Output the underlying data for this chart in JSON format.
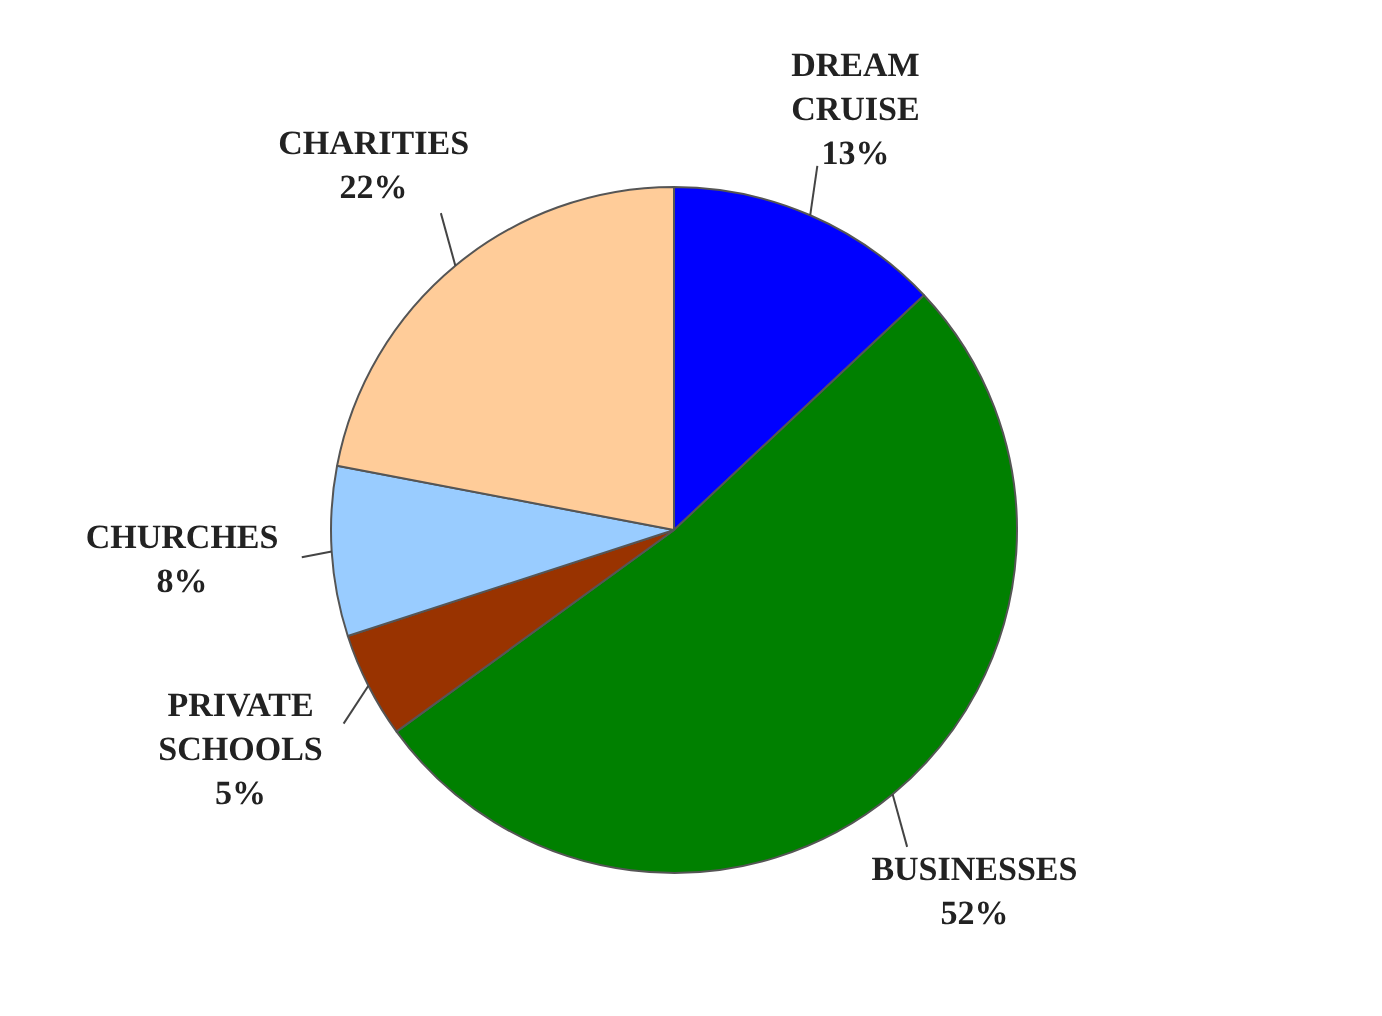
{
  "chart_data": {
    "type": "pie",
    "categories": [
      "DREAM CRUISE",
      "BUSINESSES",
      "PRIVATE SCHOOLS",
      "CHURCHES",
      "CHARITIES"
    ],
    "values": [
      13,
      52,
      5,
      8,
      22
    ],
    "value_labels": [
      "13%",
      "52%",
      "5%",
      "8%",
      "22%"
    ],
    "colors": [
      "#0000ff",
      "#008000",
      "#993300",
      "#99ccff",
      "#ffcc99"
    ],
    "legend": false
  }
}
